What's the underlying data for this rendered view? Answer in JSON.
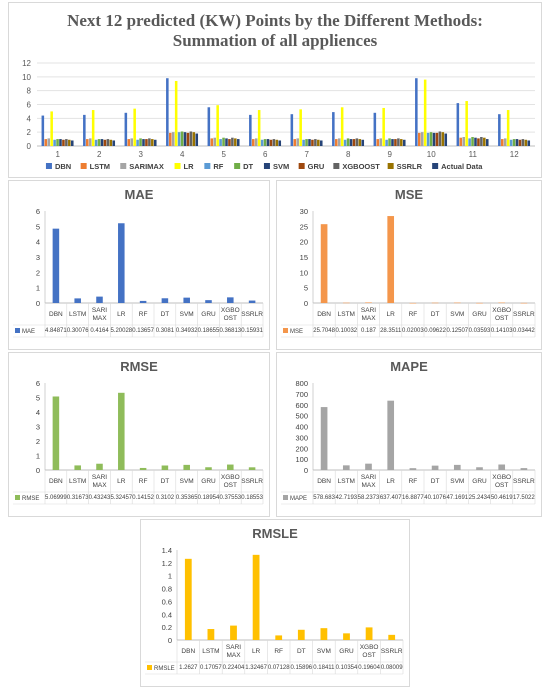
{
  "chart_data": [
    {
      "id": "top",
      "type": "bar",
      "title": "Next 12 predicted (KW) Points by the Different Methods:",
      "subtitle": "Summation of all appliences",
      "categories": [
        "1",
        "2",
        "3",
        "4",
        "5",
        "6",
        "7",
        "8",
        "9",
        "10",
        "11",
        "12"
      ],
      "ylim": [
        0,
        12
      ],
      "yticks": [
        0,
        2,
        4,
        6,
        8,
        10,
        12
      ],
      "legend_position": "bottom",
      "series": [
        {
          "name": "DBN",
          "color": "#4472c4",
          "values": [
            4.4,
            4.5,
            4.8,
            9.8,
            5.6,
            4.5,
            4.6,
            4.9,
            4.8,
            9.8,
            6.2,
            4.6
          ]
        },
        {
          "name": "LSTM",
          "color": "#ed7d31",
          "values": [
            1.0,
            1.0,
            1.0,
            1.9,
            1.1,
            1.0,
            1.0,
            1.0,
            1.0,
            1.9,
            1.2,
            1.0
          ]
        },
        {
          "name": "SARIMAX",
          "color": "#a5a5a5",
          "values": [
            1.1,
            1.1,
            1.1,
            2.0,
            1.2,
            1.1,
            1.1,
            1.1,
            1.1,
            2.0,
            1.3,
            1.1
          ]
        },
        {
          "name": "LR",
          "color": "#ffff00",
          "values": [
            5.0,
            5.2,
            5.4,
            9.4,
            5.9,
            5.2,
            5.3,
            5.6,
            5.5,
            9.6,
            6.5,
            5.2
          ]
        },
        {
          "name": "RF",
          "color": "#5b9bd5",
          "values": [
            0.9,
            0.9,
            0.9,
            2.0,
            1.0,
            0.9,
            0.9,
            0.9,
            0.9,
            1.9,
            1.1,
            0.9
          ]
        },
        {
          "name": "DT",
          "color": "#70ad47",
          "values": [
            1.0,
            1.0,
            1.1,
            2.1,
            1.2,
            1.0,
            1.0,
            1.1,
            1.1,
            2.0,
            1.3,
            1.0
          ]
        },
        {
          "name": "SVM",
          "color": "#264478",
          "values": [
            1.0,
            1.0,
            1.0,
            2.0,
            1.1,
            1.0,
            1.0,
            1.0,
            1.0,
            1.9,
            1.2,
            1.0
          ]
        },
        {
          "name": "GRU",
          "color": "#9e480e",
          "values": [
            0.9,
            0.9,
            1.0,
            1.9,
            1.0,
            0.9,
            0.9,
            1.0,
            1.0,
            1.9,
            1.1,
            0.9
          ]
        },
        {
          "name": "XGBOOST",
          "color": "#636363",
          "values": [
            1.0,
            1.0,
            1.1,
            2.1,
            1.2,
            1.0,
            1.0,
            1.1,
            1.1,
            2.1,
            1.3,
            1.0
          ]
        },
        {
          "name": "SSRLR",
          "color": "#997300",
          "values": [
            0.9,
            0.9,
            1.0,
            2.0,
            1.1,
            0.9,
            0.9,
            1.0,
            1.0,
            2.0,
            1.2,
            0.9
          ]
        },
        {
          "name": "Actual Data",
          "color": "#264478",
          "values": [
            0.8,
            0.8,
            0.9,
            1.8,
            1.0,
            0.8,
            0.8,
            0.9,
            0.9,
            1.8,
            1.0,
            0.8
          ]
        }
      ]
    },
    {
      "id": "mae",
      "type": "bar",
      "title": "MAE",
      "color": "#4472c4",
      "categories": [
        "DBN",
        "LSTM",
        "SARIMAX",
        "LR",
        "RF",
        "DT",
        "SVM",
        "GRU",
        "XGBOOST",
        "SSRLR"
      ],
      "values": [
        4.84871,
        0.30076,
        0.4164,
        5.20028,
        0.13657,
        0.3081,
        0.34932,
        0.18655,
        0.36813,
        0.15931
      ],
      "value_labels": [
        "4.84871",
        "0.30076",
        "0.4164",
        "5.20028",
        "0.13657",
        "0.3081",
        "0.34932",
        "0.18655",
        "0.36813",
        "0.15931"
      ],
      "ylim": [
        0,
        6
      ],
      "yticks": [
        0,
        1,
        2,
        3,
        4,
        5,
        6
      ],
      "legend": "MAE"
    },
    {
      "id": "mse",
      "type": "bar",
      "title": "MSE",
      "color": "#f4964b",
      "categories": [
        "DBN",
        "LSTM",
        "SARIMAX",
        "LR",
        "RF",
        "DT",
        "SVM",
        "GRU",
        "XGBOOST",
        "SSRLR"
      ],
      "values": [
        25.7048,
        0.10032,
        0.187,
        28.3511,
        0.02003,
        0.09622,
        0.12507,
        0.03593,
        0.14103,
        0.03442
      ],
      "value_labels": [
        "25.7048",
        "0.10032",
        "0.187",
        "28.3511",
        "0.02003",
        "0.09622",
        "0.12507",
        "0.03593",
        "0.14103",
        "0.03442"
      ],
      "ylim": [
        0,
        30
      ],
      "yticks": [
        0,
        5,
        10,
        15,
        20,
        25,
        30
      ],
      "legend": "MSE"
    },
    {
      "id": "rmse",
      "type": "bar",
      "title": "RMSE",
      "color": "#8fbc5a",
      "categories": [
        "DBN",
        "LSTM",
        "SARIMAX",
        "LR",
        "RF",
        "DT",
        "SVM",
        "GRU",
        "XGBOOST",
        "SSRLR"
      ],
      "values": [
        5.06999,
        0.31673,
        0.43243,
        5.32457,
        0.14152,
        0.3102,
        0.35365,
        0.18954,
        0.37553,
        0.18553
      ],
      "value_labels": [
        "5.06999",
        "0.31673",
        "0.43243",
        "5.32457",
        "0.14152",
        "0.3102",
        "0.35365",
        "0.18954",
        "0.37553",
        "0.18553"
      ],
      "ylim": [
        0,
        6
      ],
      "yticks": [
        0,
        1,
        2,
        3,
        4,
        5,
        6
      ],
      "legend": "RMSE"
    },
    {
      "id": "mape",
      "type": "bar",
      "title": "MAPE",
      "color": "#a5a5a5",
      "categories": [
        "DBN",
        "LSTM",
        "SARIMAX",
        "LR",
        "RF",
        "DT",
        "SVM",
        "GRU",
        "XGBOOST",
        "SSRLR"
      ],
      "values": [
        578.683,
        42.7193,
        58.2373,
        637.407,
        16.8877,
        40.1076,
        47.1691,
        25.2434,
        50.4619,
        17.5022
      ],
      "value_labels": [
        "578.683",
        "42.7193",
        "58.2373",
        "637.407",
        "16.8877",
        "40.1076",
        "47.1691",
        "25.2434",
        "50.4619",
        "17.5022"
      ],
      "ylim": [
        0,
        800
      ],
      "yticks": [
        0,
        100,
        200,
        300,
        400,
        500,
        600,
        700,
        800
      ],
      "legend": "MAPE"
    },
    {
      "id": "rmsle",
      "type": "bar",
      "title": "RMSLE",
      "color": "#ffc000",
      "categories": [
        "DBN",
        "LSTM",
        "SARIMAX",
        "LR",
        "RF",
        "DT",
        "SVM",
        "GRU",
        "XGBOOST",
        "SSRLR"
      ],
      "values": [
        1.2627,
        0.17057,
        0.22404,
        1.32467,
        0.07128,
        0.15896,
        0.18411,
        0.10354,
        0.19604,
        0.08009
      ],
      "value_labels": [
        "1.2627",
        "0.17057",
        "0.22404",
        "1.32467",
        "0.07128",
        "0.15896",
        "0.18411",
        "0.10354",
        "0.19604",
        "0.08009"
      ],
      "ylim": [
        0,
        1.4
      ],
      "yticks": [
        0,
        0.2,
        0.4,
        0.6,
        0.8,
        1,
        1.2,
        1.4
      ],
      "legend": "RMSLE"
    }
  ]
}
